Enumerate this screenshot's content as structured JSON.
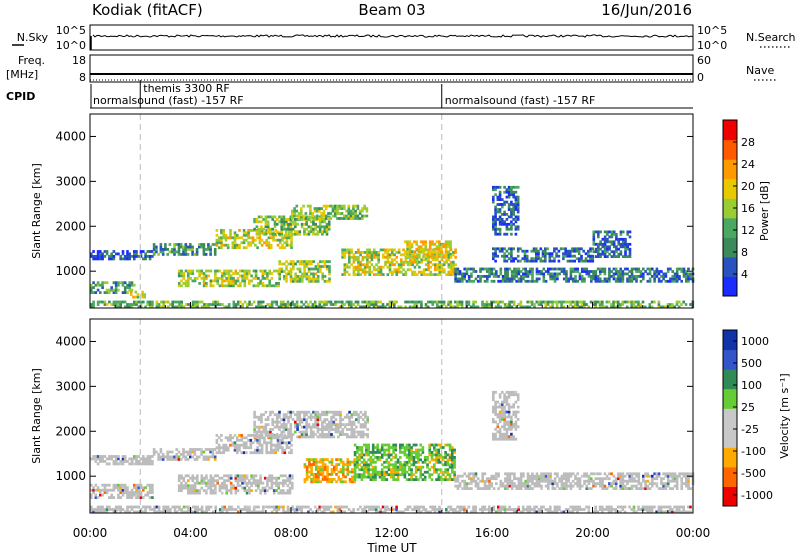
{
  "header": {
    "station": "Kodiak (fitACF)",
    "beam": "Beam 03",
    "date": "16/Jun/2016"
  },
  "strips": {
    "nsky_label": "N.Sky",
    "nsky_ticks": [
      "10^5",
      "10^0"
    ],
    "nsearch_label": "N.Search",
    "nsearch_ticks": [
      "10^5",
      "10^0"
    ],
    "freq_label_1": "Freq.",
    "freq_label_2": "[MHz]",
    "freq_ticks": [
      "18",
      "8"
    ],
    "nave_label": "Nave",
    "nave_ticks": [
      "60",
      "0"
    ],
    "cpid_label": "CPID",
    "cpid_segments": [
      {
        "label": "normalsound (fast) -157 RF",
        "start_hour": 0,
        "end_hour": 2.0
      },
      {
        "label": "themis 3300 RF",
        "start_hour": 2.0,
        "end_hour": 14.0
      },
      {
        "label": "normalsound (fast) -157 RF",
        "start_hour": 14.0,
        "end_hour": 24
      }
    ]
  },
  "colors": {
    "power": [
      "#1a2cff",
      "#2a52be",
      "#3a8a5a",
      "#4aa860",
      "#9acd32",
      "#e8c800",
      "#ff9900",
      "#ff5a00",
      "#ee0000"
    ],
    "velocity": [
      "#ee0000",
      "#ff6600",
      "#ffaa00",
      "#c8c8c8",
      "#c8c8c8",
      "#66cc33",
      "#2e8b57",
      "#3355cc",
      "#1133aa"
    ],
    "ground": "#bcbcbc"
  },
  "chart_data": [
    {
      "type": "heatmap",
      "panel": "power",
      "ylabel": "Slant Range [km]",
      "ylim": [
        180,
        4500
      ],
      "yticks": [
        1000,
        2000,
        3000,
        4000
      ],
      "xlim": [
        0,
        24
      ],
      "colorbar": {
        "label": "Power [dB]",
        "range": [
          0,
          32
        ],
        "ticks": [
          "4",
          "8",
          "12",
          "16",
          "20",
          "24",
          "28"
        ]
      },
      "echo_regions": [
        {
          "t0": 0.0,
          "t1": 1.8,
          "r0": 500,
          "r1": 750,
          "level": 0.35
        },
        {
          "t0": 1.5,
          "t1": 2.2,
          "r0": 400,
          "r1": 550,
          "level": 0.55
        },
        {
          "t0": 0.0,
          "t1": 2.5,
          "r0": 1250,
          "r1": 1450,
          "level": 0.15
        },
        {
          "t0": 2.5,
          "t1": 5.0,
          "r0": 1350,
          "r1": 1600,
          "level": 0.3
        },
        {
          "t0": 3.5,
          "t1": 7.5,
          "r0": 650,
          "r1": 1000,
          "level": 0.5
        },
        {
          "t0": 5.0,
          "t1": 8.0,
          "r0": 1500,
          "r1": 1900,
          "level": 0.55
        },
        {
          "t0": 6.5,
          "t1": 9.5,
          "r0": 1800,
          "r1": 2200,
          "level": 0.45
        },
        {
          "t0": 8.0,
          "t1": 11.0,
          "r0": 2150,
          "r1": 2450,
          "level": 0.45
        },
        {
          "t0": 7.5,
          "t1": 9.5,
          "r0": 750,
          "r1": 1200,
          "level": 0.5
        },
        {
          "t0": 10.0,
          "t1": 14.5,
          "r0": 900,
          "r1": 1500,
          "level": 0.55
        },
        {
          "t0": 12.5,
          "t1": 14.3,
          "r0": 1300,
          "r1": 1650,
          "level": 0.6
        },
        {
          "t0": 14.5,
          "t1": 24.0,
          "r0": 750,
          "r1": 1050,
          "level": 0.25
        },
        {
          "t0": 16.0,
          "t1": 20.0,
          "r0": 1200,
          "r1": 1500,
          "level": 0.2
        },
        {
          "t0": 16.0,
          "t1": 17.0,
          "r0": 1800,
          "r1": 2900,
          "level": 0.2
        },
        {
          "t0": 20.0,
          "t1": 21.5,
          "r0": 1300,
          "r1": 1900,
          "level": 0.2
        },
        {
          "t0": 0.0,
          "t1": 24.0,
          "r0": 180,
          "r1": 330,
          "level": 0.4
        }
      ]
    },
    {
      "type": "heatmap",
      "panel": "velocity",
      "ylabel": "Slant Range [km]",
      "ylim": [
        180,
        4500
      ],
      "yticks": [
        1000,
        2000,
        3000,
        4000
      ],
      "xlim": [
        0,
        24
      ],
      "colorbar": {
        "label": "Velocity [m s⁻¹]",
        "ticks": [
          "1000",
          "500",
          "100",
          "25",
          "-25",
          "-100",
          "-500",
          "-1000"
        ]
      },
      "echo_regions": [
        {
          "t0": 0.0,
          "t1": 2.5,
          "r0": 500,
          "r1": 800,
          "kind": "ground"
        },
        {
          "t0": 0.0,
          "t1": 2.5,
          "r0": 1250,
          "r1": 1450,
          "kind": "ground"
        },
        {
          "t0": 2.5,
          "t1": 5.0,
          "r0": 1350,
          "r1": 1600,
          "kind": "ground"
        },
        {
          "t0": 3.5,
          "t1": 8.0,
          "r0": 600,
          "r1": 1000,
          "kind": "ground"
        },
        {
          "t0": 5.0,
          "t1": 8.0,
          "r0": 1500,
          "r1": 1900,
          "kind": "ground"
        },
        {
          "t0": 6.5,
          "t1": 11.0,
          "r0": 1850,
          "r1": 2450,
          "kind": "ground"
        },
        {
          "t0": 8.5,
          "t1": 10.5,
          "r0": 850,
          "r1": 1350,
          "kind": "neg"
        },
        {
          "t0": 10.5,
          "t1": 14.5,
          "r0": 900,
          "r1": 1700,
          "kind": "pos"
        },
        {
          "t0": 14.5,
          "t1": 24.0,
          "r0": 700,
          "r1": 1050,
          "kind": "ground"
        },
        {
          "t0": 16.0,
          "t1": 17.0,
          "r0": 1800,
          "r1": 2900,
          "kind": "ground"
        },
        {
          "t0": 0.0,
          "t1": 24.0,
          "r0": 180,
          "r1": 330,
          "kind": "ground"
        }
      ]
    }
  ],
  "xaxis": {
    "ticks": [
      "00:00",
      "04:00",
      "08:00",
      "12:00",
      "16:00",
      "20:00",
      "00:00"
    ],
    "label": "Time UT"
  }
}
